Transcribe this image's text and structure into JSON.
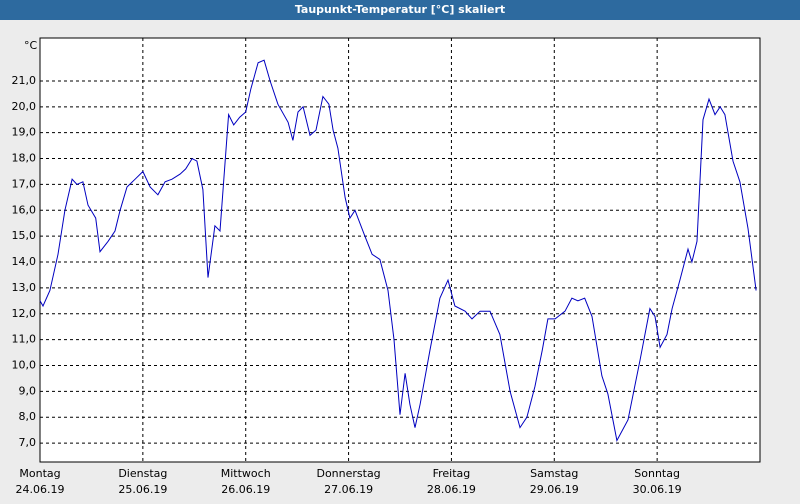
{
  "chart_data": {
    "type": "line",
    "title": "Taupunkt-Temperatur [°C] skaliert",
    "y_unit": "°C",
    "x": [
      0,
      0.7,
      2.3,
      4.2,
      5.8,
      7.5,
      8.6,
      10,
      11.2,
      13,
      14,
      15.9,
      17.5,
      18.7,
      20.3,
      22.2,
      24,
      25.7,
      27.5,
      29.2,
      30.8,
      32.7,
      34,
      35.5,
      36.6,
      38,
      39.2,
      40.8,
      42,
      44,
      45.2,
      46.6,
      48,
      49.2,
      50.9,
      52.3,
      53.7,
      55.5,
      57.9,
      59,
      60.2,
      61.4,
      63,
      64.4,
      66,
      67.4,
      68.4,
      69.5,
      71.2,
      72.3,
      73.5,
      75.8,
      77.5,
      79.3,
      81.2,
      82.6,
      84,
      85.2,
      86.3,
      87.5,
      88.7,
      91,
      93.3,
      95.2,
      96.8,
      99.2,
      100.8,
      102.7,
      105,
      107.3,
      109.7,
      112,
      113.6,
      115.5,
      117.2,
      118.5,
      120.2,
      122.5,
      124.1,
      125.5,
      127.1,
      128.8,
      131.1,
      132.5,
      134.6,
      137.2,
      140,
      142.3,
      143.5,
      144.7,
      146.3,
      147.5,
      149.3,
      151.2,
      152.1,
      153.3,
      154.7,
      156.1,
      157.5,
      158.7,
      159.8,
      161.7,
      163.3,
      165.2,
      167.1
    ],
    "series": [
      {
        "name": "Taupunkt",
        "color": "#0000c0",
        "values": [
          12.5,
          12.3,
          12.9,
          14.3,
          16.0,
          17.2,
          17.0,
          17.1,
          16.2,
          15.7,
          14.4,
          14.8,
          15.2,
          16.0,
          16.9,
          17.2,
          17.5,
          16.9,
          16.6,
          17.1,
          17.2,
          17.4,
          17.6,
          18.0,
          17.9,
          16.8,
          13.4,
          15.4,
          15.2,
          19.7,
          19.3,
          19.6,
          19.8,
          20.7,
          21.7,
          21.8,
          21.0,
          20.1,
          19.4,
          18.7,
          19.8,
          20.0,
          18.9,
          19.1,
          20.4,
          20.1,
          19.1,
          18.4,
          16.5,
          15.7,
          16.0,
          15.0,
          14.3,
          14.1,
          12.9,
          11.0,
          8.1,
          9.7,
          8.5,
          7.6,
          8.5,
          10.6,
          12.6,
          13.3,
          12.3,
          12.1,
          11.8,
          12.1,
          12.1,
          11.2,
          9.0,
          7.6,
          8.0,
          9.2,
          10.6,
          11.8,
          11.8,
          12.1,
          12.6,
          12.5,
          12.6,
          11.9,
          9.6,
          8.9,
          7.1,
          7.9,
          10.2,
          12.2,
          11.9,
          10.7,
          11.2,
          12.2,
          13.3,
          14.5,
          14.0,
          14.8,
          19.5,
          20.3,
          19.7,
          20.0,
          19.7,
          17.9,
          17.1,
          15.3,
          12.9
        ]
      }
    ],
    "xlim": [
      0,
      168
    ],
    "xticks": [
      {
        "value": 0,
        "label": "Montag"
      },
      {
        "value": 24,
        "label": "Dienstag"
      },
      {
        "value": 48,
        "label": "Mittwoch"
      },
      {
        "value": 72,
        "label": "Donnerstag"
      },
      {
        "value": 96,
        "label": "Freitag"
      },
      {
        "value": 120,
        "label": "Samstag"
      },
      {
        "value": 144,
        "label": "Sonntag"
      }
    ],
    "xtick_dates": [
      "24.06.19",
      "25.06.19",
      "26.06.19",
      "27.06.19",
      "28.06.19",
      "29.06.19",
      "30.06.19"
    ],
    "ylim": [
      6.27,
      22.66
    ],
    "yticks": [
      {
        "value": 7,
        "label": "7,0"
      },
      {
        "value": 8,
        "label": "8,0"
      },
      {
        "value": 9,
        "label": "9,0"
      },
      {
        "value": 10,
        "label": "10,0"
      },
      {
        "value": 11,
        "label": "11,0"
      },
      {
        "value": 12,
        "label": "12,0"
      },
      {
        "value": 13,
        "label": "13,0"
      },
      {
        "value": 14,
        "label": "14,0"
      },
      {
        "value": 15,
        "label": "15,0"
      },
      {
        "value": 16,
        "label": "16,0"
      },
      {
        "value": 17,
        "label": "17,0"
      },
      {
        "value": 18,
        "label": "18,0"
      },
      {
        "value": 19,
        "label": "19,0"
      },
      {
        "value": 20,
        "label": "20,0"
      },
      {
        "value": 21,
        "label": "21,0"
      }
    ],
    "grid": true
  }
}
